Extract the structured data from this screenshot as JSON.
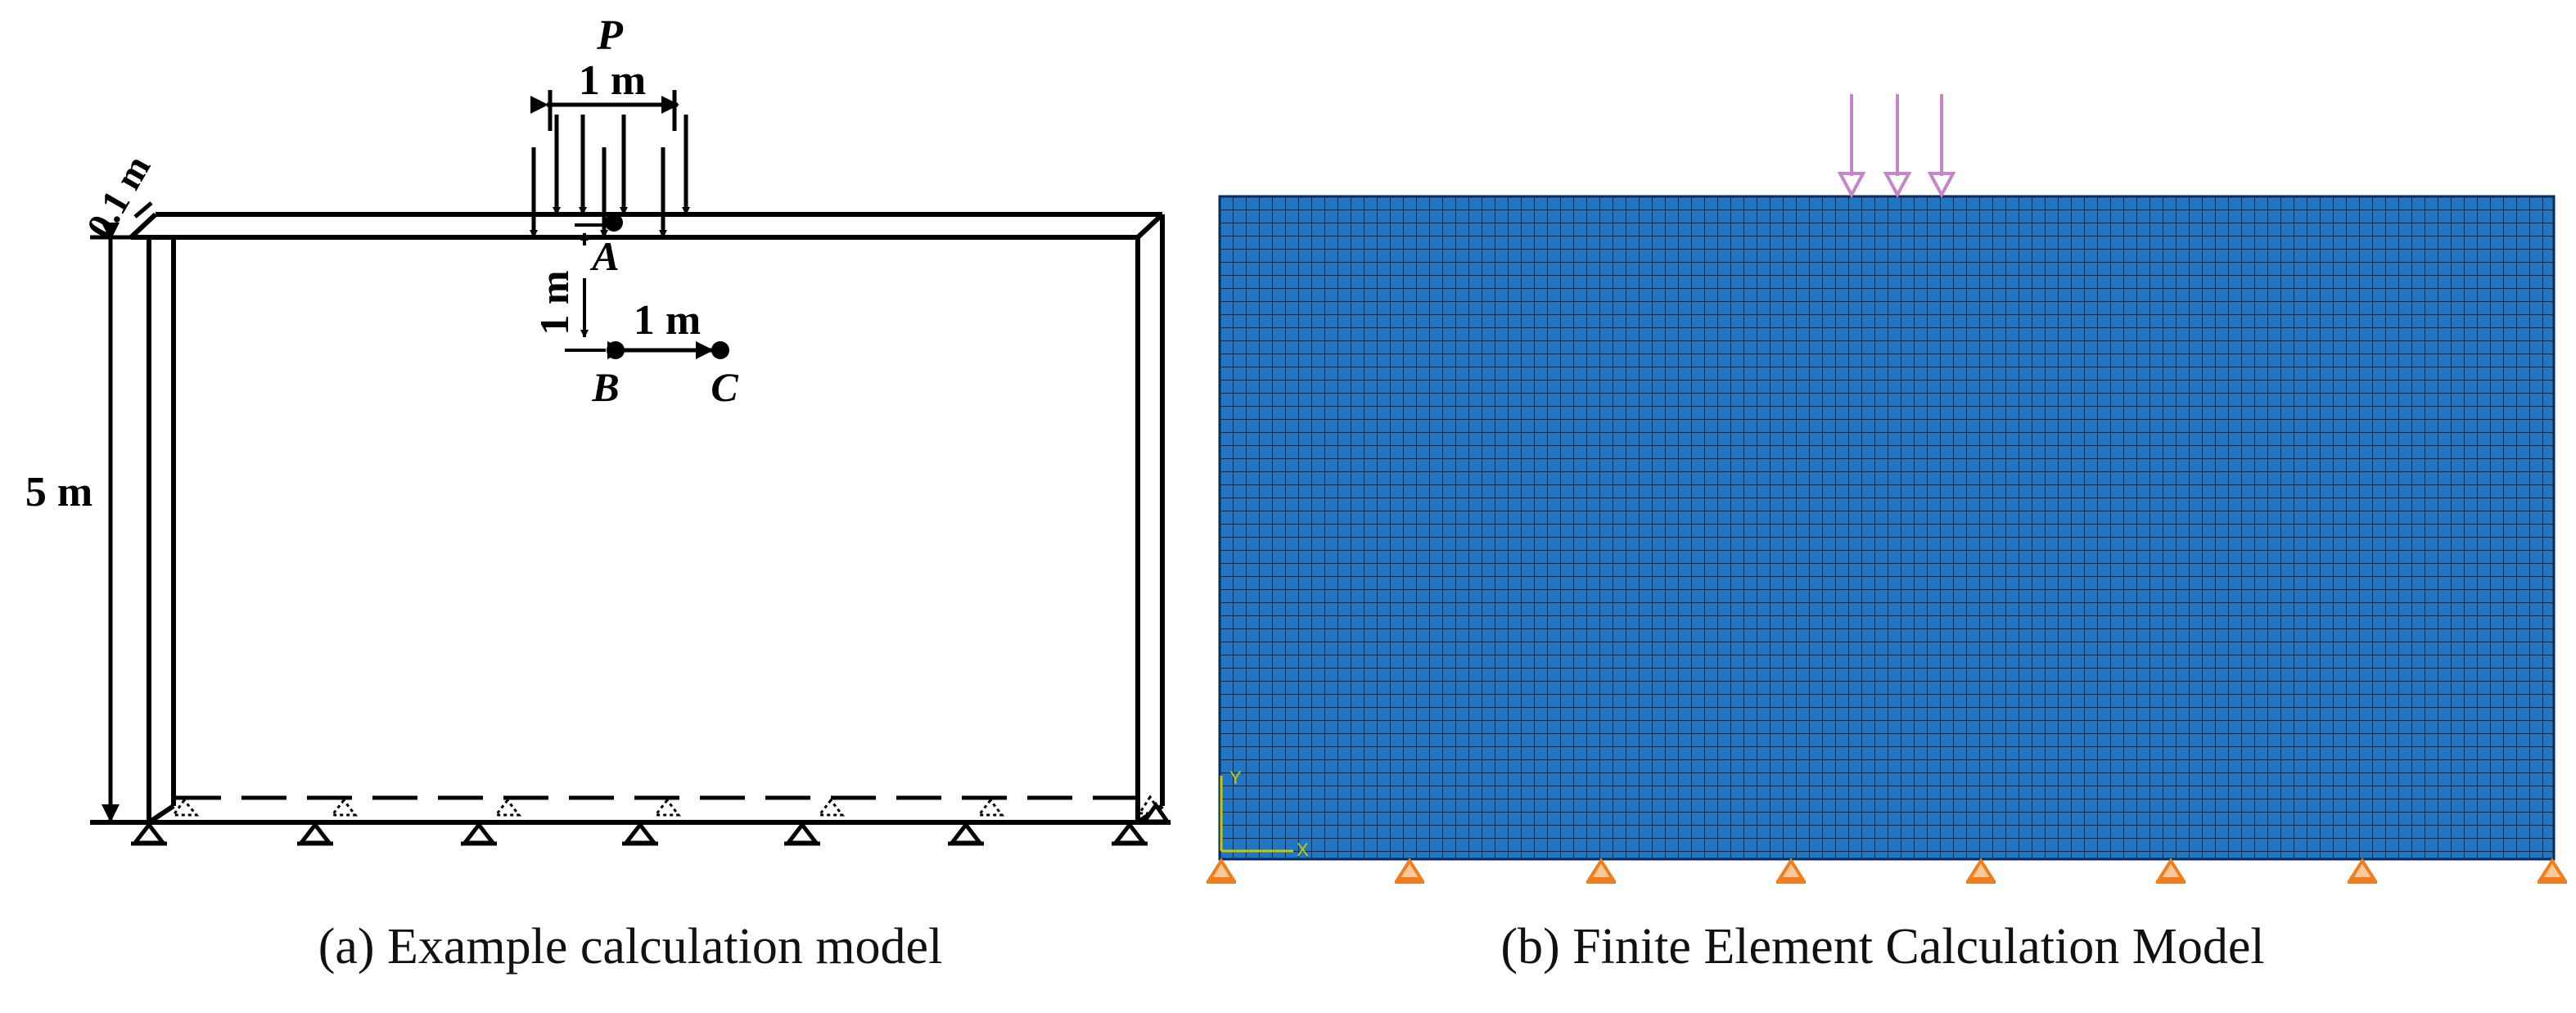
{
  "panel_a": {
    "caption": "(a) Example calculation model",
    "load_label": "P",
    "dim_load_width": "1 m",
    "dim_thickness": "0.1 m",
    "dim_height": "5 m",
    "dim_depth": "1 m",
    "dim_offset": "1 m",
    "point_a": "A",
    "point_b": "B",
    "point_c": "C"
  },
  "panel_b": {
    "caption": "(b) Finite Element Calculation Model",
    "axis_x": "X",
    "axis_y": "Y",
    "mesh_color": "#1f76c4",
    "mesh_line_color": "#0a2c55",
    "load_arrow_color": "#c586c9",
    "support_color": "#f07e1e"
  }
}
